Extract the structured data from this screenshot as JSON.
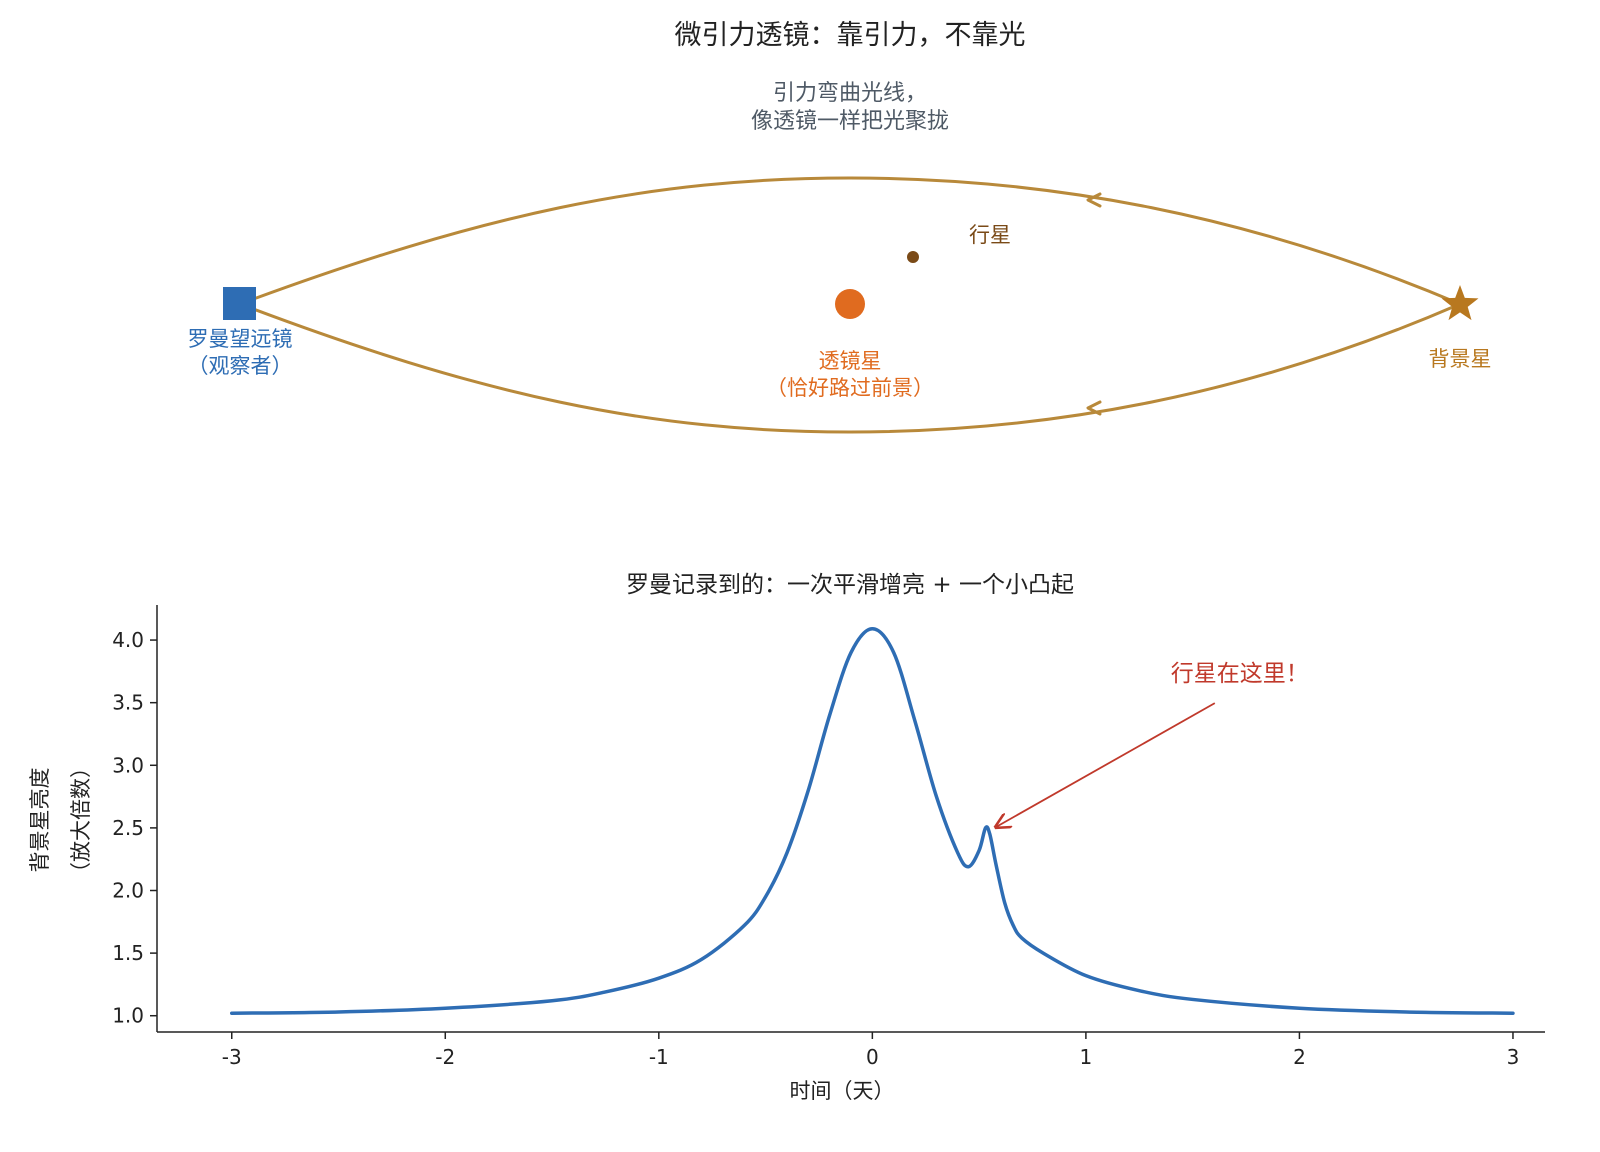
{
  "diagram": {
    "title": "微引力透镜：靠引力，不靠光",
    "caption_line1": "引力弯曲光线，",
    "caption_line2": "像透镜一样把光聚拢",
    "observer_line1": "罗曼望远镜",
    "observer_line2": "（观察者）",
    "lens_line1": "透镜星",
    "lens_line2": "（恰好路过前景）",
    "planet_label": "行星",
    "source_label": "背景星",
    "colors": {
      "light_path": "#b8893a",
      "observer": "#2e6db4",
      "lens": "#e06b1f",
      "planet": "#7a4a17",
      "source": "#b8781f",
      "caption": "#4f5a66"
    }
  },
  "chart_data": {
    "type": "line",
    "title": "罗曼记录到的：一次平滑增亮 + 一个小凸起",
    "xlabel": "时间（天）",
    "ylabel_line1": "背景星亮度",
    "ylabel_line2": "（放大倍数）",
    "xlim": [
      -3.35,
      3.15
    ],
    "ylim": [
      0.87,
      4.28
    ],
    "xticks": [
      -3,
      -2,
      -1,
      0,
      1,
      2,
      3
    ],
    "xtick_labels": [
      "-3",
      "-2",
      "-1",
      "0",
      "1",
      "2",
      "3"
    ],
    "yticks": [
      1.0,
      1.5,
      2.0,
      2.5,
      3.0,
      3.5,
      4.0
    ],
    "ytick_labels": [
      "1.0",
      "1.5",
      "2.0",
      "2.5",
      "3.0",
      "3.5",
      "4.0"
    ],
    "grid": false,
    "series": [
      {
        "color": "#2e6db4",
        "x": [
          -3.0,
          -2.5,
          -2.0,
          -1.5,
          -1.25,
          -1.0,
          -0.8,
          -0.6,
          -0.5,
          -0.4,
          -0.3,
          -0.2,
          -0.1,
          0.0,
          0.1,
          0.2,
          0.3,
          0.4,
          0.45,
          0.5,
          0.53,
          0.55,
          0.58,
          0.62,
          0.66,
          0.7,
          0.8,
          1.0,
          1.25,
          1.5,
          2.0,
          2.5,
          3.0
        ],
        "y": [
          1.02,
          1.03,
          1.06,
          1.12,
          1.19,
          1.3,
          1.45,
          1.72,
          1.95,
          2.3,
          2.8,
          3.4,
          3.9,
          4.09,
          3.9,
          3.35,
          2.75,
          2.3,
          2.19,
          2.32,
          2.5,
          2.45,
          2.2,
          1.9,
          1.72,
          1.62,
          1.5,
          1.32,
          1.2,
          1.13,
          1.06,
          1.03,
          1.02
        ]
      }
    ],
    "annotation": {
      "text": "行星在这里！",
      "x": 0.55,
      "y": 2.49,
      "color": "#c0392b"
    }
  }
}
